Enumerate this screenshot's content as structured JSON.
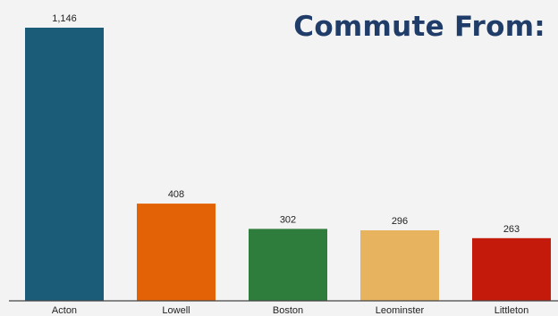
{
  "chart_data": {
    "type": "bar",
    "title": "Commute From:",
    "categories": [
      "Acton",
      "Lowell",
      "Boston",
      "Leominster",
      "Littleton"
    ],
    "values": [
      1146,
      408,
      302,
      296,
      263
    ],
    "value_labels": [
      "1,146",
      "408",
      "302",
      "296",
      "263"
    ],
    "colors": [
      "#1b5c78",
      "#e36206",
      "#2f7d3c",
      "#e7b35f",
      "#c41a0c"
    ],
    "xlabel": "",
    "ylabel": "",
    "ylim": [
      0,
      1146
    ],
    "grid": false,
    "legend": "none"
  }
}
